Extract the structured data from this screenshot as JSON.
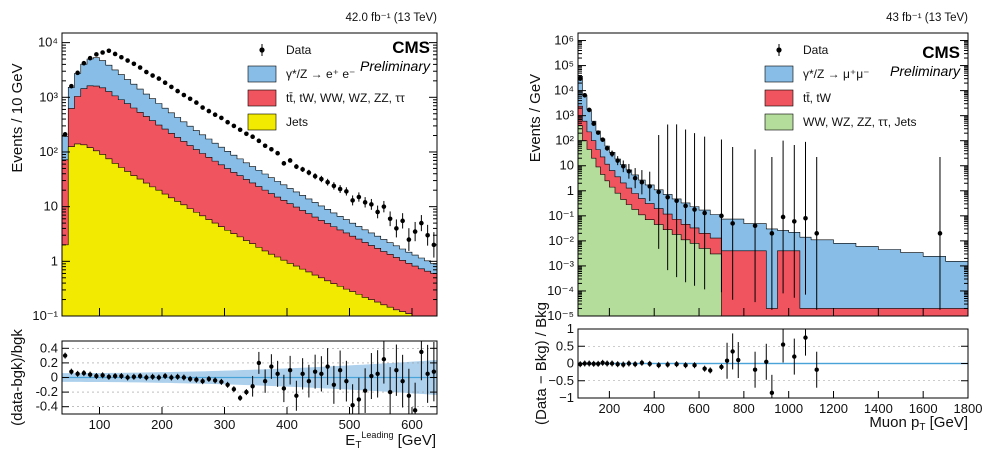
{
  "chart_data": [
    {
      "type": "area",
      "lumi": "42.0 fb⁻¹ (13 TeV)",
      "cms": "CMS",
      "preliminary": "Preliminary",
      "ylabel": "Events / 10 GeV",
      "ylog": true,
      "ylim": [
        0.1,
        15000
      ],
      "xlim": [
        40,
        640
      ],
      "yticks": [
        {
          "v": 0.1,
          "t": "10⁻¹"
        },
        {
          "v": 1,
          "t": "1"
        },
        {
          "v": 10,
          "t": "10"
        },
        {
          "v": 100,
          "t": "10²"
        },
        {
          "v": 1000,
          "t": "10³"
        },
        {
          "v": 10000,
          "t": "10⁴"
        }
      ],
      "legend": [
        {
          "name": "Data",
          "kind": "marker"
        },
        {
          "name": "γ*/Z → e⁺ e⁻",
          "color": "#87bde6"
        },
        {
          "name": "tt̄, tW, WW, WZ, ZZ, ττ",
          "color": "#f0555f"
        },
        {
          "name": "Jets",
          "color": "#f2ea00"
        }
      ],
      "bins": {
        "start": 40,
        "width": 10
      },
      "stack": {
        "jets": [
          2,
          125,
          140,
          135,
          120,
          105,
          90,
          75,
          62,
          52,
          44,
          37,
          32,
          27,
          23,
          20,
          17,
          14.5,
          12.5,
          10.8,
          9.2,
          7.9,
          6.8,
          5.8,
          5.0,
          4.3,
          3.7,
          3.2,
          2.8,
          2.4,
          2.1,
          1.8,
          1.55,
          1.35,
          1.2,
          1.05,
          0.92,
          0.82,
          0.72,
          0.64,
          0.56,
          0.5,
          0.44,
          0.39,
          0.35,
          0.31,
          0.28,
          0.25,
          0.22,
          0.2,
          0.18,
          0.16,
          0.145,
          0.13,
          0.12,
          0.11,
          0.1,
          0.1,
          0.1,
          0.1
        ],
        "ttbar": [
          70,
          500,
          900,
          1300,
          1500,
          1500,
          1400,
          1200,
          1000,
          850,
          720,
          600,
          500,
          420,
          350,
          290,
          245,
          205,
          172,
          145,
          122,
          103,
          87,
          74,
          63,
          54,
          46,
          39,
          34,
          29,
          25,
          21.5,
          18.5,
          16,
          13.8,
          12,
          10.4,
          9,
          7.8,
          6.8,
          5.9,
          5.1,
          4.5,
          3.9,
          3.4,
          3.0,
          2.6,
          2.3,
          2.0,
          1.75,
          1.55,
          1.35,
          1.2,
          1.05,
          0.92,
          0.81,
          0.72,
          0.63,
          0.56,
          0.5
        ],
        "dy": [
          120,
          900,
          1700,
          2600,
          3400,
          3700,
          3200,
          2600,
          2100,
          1700,
          1350,
          1100,
          880,
          700,
          570,
          460,
          370,
          300,
          245,
          200,
          165,
          136,
          112,
          93,
          77,
          64,
          53,
          45,
          38,
          32,
          27,
          23,
          19.5,
          16.5,
          14,
          12,
          10.2,
          8.8,
          7.5,
          6.4,
          5.5,
          4.7,
          4.0,
          3.4,
          2.9,
          2.5,
          2.1,
          1.8,
          1.55,
          1.35,
          1.15,
          1.0,
          0.85,
          0.74,
          0.64,
          0.55,
          0.48,
          0.42,
          0.36,
          0.31
        ]
      },
      "data": [
        [
          45,
          210
        ],
        [
          55,
          1600
        ],
        [
          65,
          2800
        ],
        [
          75,
          4200
        ],
        [
          85,
          5200
        ],
        [
          95,
          6100
        ],
        [
          105,
          6600
        ],
        [
          115,
          7100
        ],
        [
          125,
          6200
        ],
        [
          135,
          5400
        ],
        [
          145,
          4700
        ],
        [
          155,
          4100
        ],
        [
          165,
          3500
        ],
        [
          175,
          2900
        ],
        [
          185,
          2500
        ],
        [
          195,
          2200
        ],
        [
          205,
          1850
        ],
        [
          215,
          1550
        ],
        [
          225,
          1300
        ],
        [
          235,
          1100
        ],
        [
          245,
          940
        ],
        [
          255,
          800
        ],
        [
          265,
          650
        ],
        [
          275,
          560
        ],
        [
          285,
          480
        ],
        [
          295,
          420
        ],
        [
          305,
          350
        ],
        [
          315,
          300
        ],
        [
          325,
          255
        ],
        [
          335,
          215
        ],
        [
          345,
          190
        ],
        [
          355,
          160
        ],
        [
          365,
          130
        ],
        [
          375,
          112
        ],
        [
          385,
          95
        ],
        [
          395,
          62
        ],
        [
          405,
          70
        ],
        [
          415,
          54
        ],
        [
          425,
          48
        ],
        [
          435,
          42
        ],
        [
          445,
          36
        ],
        [
          455,
          32
        ],
        [
          465,
          28
        ],
        [
          475,
          24
        ],
        [
          485,
          21
        ],
        [
          495,
          19
        ],
        [
          505,
          13
        ],
        [
          515,
          15
        ],
        [
          525,
          12
        ],
        [
          535,
          11
        ],
        [
          545,
          8
        ],
        [
          555,
          10
        ],
        [
          565,
          6
        ],
        [
          575,
          4
        ],
        [
          585,
          5.5
        ],
        [
          595,
          2.5
        ],
        [
          605,
          3.5
        ],
        [
          615,
          5
        ],
        [
          625,
          3
        ],
        [
          635,
          2
        ]
      ],
      "ratio": {
        "ylabel": "(data-bgk)/bgk",
        "ylim": [
          -0.5,
          0.5
        ],
        "yticks": [
          {
            "v": 0.4,
            "t": "0.4"
          },
          {
            "v": 0.2,
            "t": "0.2"
          },
          {
            "v": 0,
            "t": "0"
          },
          {
            "v": -0.2,
            "t": "-0.2"
          },
          {
            "v": -0.4,
            "t": "-0.4"
          }
        ],
        "points": [
          [
            45,
            0.3
          ],
          [
            55,
            0.08
          ],
          [
            65,
            0.05
          ],
          [
            75,
            0.06
          ],
          [
            85,
            0.04
          ],
          [
            95,
            0.02
          ],
          [
            105,
            0.03
          ],
          [
            115,
            0.01
          ],
          [
            125,
            0.02
          ],
          [
            135,
            0.02
          ],
          [
            145,
            0.0
          ],
          [
            155,
            0.01
          ],
          [
            165,
            0.02
          ],
          [
            175,
            0.0
          ],
          [
            185,
            0.01
          ],
          [
            195,
            0.0
          ],
          [
            205,
            0.02
          ],
          [
            215,
            0.0
          ],
          [
            225,
            0.01
          ],
          [
            235,
            0.0
          ],
          [
            245,
            -0.02
          ],
          [
            255,
            -0.03
          ],
          [
            265,
            -0.05
          ],
          [
            275,
            -0.02
          ],
          [
            285,
            -0.04
          ],
          [
            295,
            -0.06
          ],
          [
            305,
            -0.1
          ],
          [
            315,
            -0.16
          ],
          [
            325,
            -0.28
          ],
          [
            335,
            -0.2
          ],
          [
            345,
            -0.12
          ],
          [
            355,
            0.2
          ],
          [
            365,
            -0.05
          ],
          [
            375,
            0.15
          ],
          [
            385,
            0.05
          ],
          [
            395,
            -0.15
          ],
          [
            405,
            0.1
          ],
          [
            415,
            -0.25
          ],
          [
            425,
            0.05
          ],
          [
            435,
            -0.05
          ],
          [
            445,
            0.08
          ],
          [
            455,
            0.05
          ],
          [
            465,
            0.15
          ],
          [
            475,
            -0.1
          ],
          [
            485,
            0.1
          ],
          [
            495,
            -0.05
          ],
          [
            505,
            -0.38
          ],
          [
            515,
            -0.3
          ],
          [
            525,
            -0.18
          ],
          [
            535,
            0.02
          ],
          [
            545,
            0.05
          ],
          [
            555,
            0.25
          ],
          [
            565,
            -0.2
          ],
          [
            575,
            0.1
          ],
          [
            585,
            -0.05
          ],
          [
            595,
            -0.25
          ],
          [
            605,
            -0.45
          ],
          [
            615,
            0.35
          ],
          [
            625,
            0.05
          ],
          [
            635,
            0.08
          ]
        ]
      },
      "xticks": [
        100,
        200,
        300,
        400,
        500,
        600
      ],
      "xlabel": "E_T^Leading [GeV]"
    },
    {
      "type": "area",
      "lumi": "43 fb⁻¹ (13 TeV)",
      "cms": "CMS",
      "preliminary": "Preliminary",
      "ylabel": "Events / GeV",
      "ylog": true,
      "ylim": [
        1e-05,
        2000000
      ],
      "xlim": [
        60,
        1800
      ],
      "yticks": [
        {
          "v": 1e-05,
          "t": "10⁻⁵"
        },
        {
          "v": 0.0001,
          "t": "10⁻⁴"
        },
        {
          "v": 0.001,
          "t": "10⁻³"
        },
        {
          "v": 0.01,
          "t": "10⁻²"
        },
        {
          "v": 0.1,
          "t": "10⁻¹"
        },
        {
          "v": 1,
          "t": "1"
        },
        {
          "v": 10,
          "t": "10"
        },
        {
          "v": 100,
          "t": "10²"
        },
        {
          "v": 1000,
          "t": "10³"
        },
        {
          "v": 10000,
          "t": "10⁴"
        },
        {
          "v": 100000,
          "t": "10⁵"
        },
        {
          "v": 1000000,
          "t": "10⁶"
        }
      ],
      "legend": [
        {
          "name": "Data",
          "kind": "marker"
        },
        {
          "name": "γ*/Z → μ⁺μ⁻",
          "color": "#87bde6"
        },
        {
          "name": "tt̄, tW",
          "color": "#f0555f"
        },
        {
          "name": "WW, WZ, ZZ, ττ, Jets",
          "color": "#b4dc9a"
        }
      ],
      "edges": [
        60,
        80,
        100,
        120,
        140,
        160,
        180,
        200,
        225,
        250,
        275,
        300,
        330,
        360,
        400,
        440,
        480,
        520,
        560,
        600,
        650,
        700,
        800,
        900,
        950,
        1000,
        1050,
        1100,
        1200,
        1300,
        1400,
        1500,
        1600,
        1700,
        1800
      ],
      "stack": {
        "green": [
          400,
          100,
          45,
          20,
          9,
          4.5,
          2.5,
          1.4,
          0.8,
          0.45,
          0.28,
          0.18,
          0.11,
          0.07,
          0.045,
          0.028,
          0.018,
          0.011,
          0.008,
          0.005,
          0.003,
          1e-05,
          1e-05,
          1e-05,
          1e-05,
          1e-05,
          1e-05,
          1e-05,
          1e-05,
          1e-05,
          1e-05,
          1e-05,
          1e-05,
          1e-05
        ],
        "red": [
          2000,
          500,
          180,
          80,
          35,
          18,
          9,
          5,
          2.8,
          1.6,
          1.0,
          0.6,
          0.38,
          0.24,
          0.15,
          0.09,
          0.055,
          0.035,
          0.025,
          0.015,
          0.01,
          0.004,
          0.004,
          1e-05,
          0.004,
          0.004,
          1e-05,
          1e-05,
          1e-05,
          1e-05,
          1e-05,
          1e-05,
          1e-05,
          1e-05
        ],
        "dy": [
          35000,
          6000,
          1500,
          500,
          200,
          95,
          50,
          28,
          15,
          9,
          5.5,
          3.5,
          2.2,
          1.4,
          0.9,
          0.6,
          0.4,
          0.28,
          0.2,
          0.15,
          0.1,
          0.07,
          0.045,
          0.03,
          0.022,
          0.018,
          0.014,
          0.011,
          0.008,
          0.006,
          0.0045,
          0.0034,
          0.0024,
          0.0015
        ]
      },
      "data": [
        [
          70,
          30000
        ],
        [
          90,
          6500
        ],
        [
          110,
          1700
        ],
        [
          130,
          480
        ],
        [
          150,
          210
        ],
        [
          170,
          110
        ],
        [
          190,
          50
        ],
        [
          212,
          30
        ],
        [
          237,
          16
        ],
        [
          262,
          9.5
        ],
        [
          287,
          6
        ],
        [
          315,
          3.2
        ],
        [
          345,
          2.2
        ],
        [
          380,
          1.5
        ],
        [
          420,
          0.9
        ],
        [
          460,
          0.55
        ],
        [
          500,
          0.4
        ],
        [
          540,
          0.25
        ],
        [
          580,
          0.18
        ],
        [
          625,
          0.13
        ],
        [
          700,
          0.1
        ],
        [
          750,
          0.05
        ],
        [
          850,
          0.04
        ],
        [
          925,
          0.02
        ],
        [
          975,
          0.09
        ],
        [
          1025,
          0.06
        ],
        [
          1075,
          0.08
        ],
        [
          1125,
          0.02
        ],
        [
          1675,
          0.02
        ]
      ],
      "ratio": {
        "ylabel": "(Data − Bkg) / Bkg",
        "ylim": [
          -1,
          1
        ],
        "yticks": [
          {
            "v": 1,
            "t": "1"
          },
          {
            "v": 0.5,
            "t": "0.5"
          },
          {
            "v": 0,
            "t": "0"
          },
          {
            "v": -0.5,
            "t": "−0.5"
          },
          {
            "v": -1,
            "t": "−1"
          }
        ],
        "points": [
          [
            70,
            -0.02
          ],
          [
            90,
            0.0
          ],
          [
            110,
            0.0
          ],
          [
            130,
            -0.01
          ],
          [
            150,
            -0.01
          ],
          [
            170,
            0.02
          ],
          [
            190,
            0.0
          ],
          [
            212,
            0.0
          ],
          [
            237,
            -0.02
          ],
          [
            262,
            -0.03
          ],
          [
            287,
            0.0
          ],
          [
            315,
            -0.02
          ],
          [
            345,
            0.02
          ],
          [
            380,
            -0.01
          ],
          [
            420,
            -0.05
          ],
          [
            460,
            -0.03
          ],
          [
            500,
            -0.02
          ],
          [
            540,
            -0.05
          ],
          [
            580,
            -0.05
          ],
          [
            625,
            -0.15
          ],
          [
            650,
            -0.2
          ],
          [
            700,
            -0.1
          ],
          [
            725,
            0.08
          ],
          [
            750,
            0.35
          ],
          [
            775,
            0.1
          ],
          [
            850,
            -0.18
          ],
          [
            900,
            0.05
          ],
          [
            925,
            -0.85
          ],
          [
            975,
            0.55
          ],
          [
            1025,
            0.2
          ],
          [
            1075,
            0.75
          ],
          [
            1125,
            -0.18
          ]
        ]
      },
      "xticks": [
        200,
        400,
        600,
        800,
        1000,
        1200,
        1400,
        1600,
        1800
      ],
      "xlabel": "Muon p_T [GeV]"
    }
  ]
}
